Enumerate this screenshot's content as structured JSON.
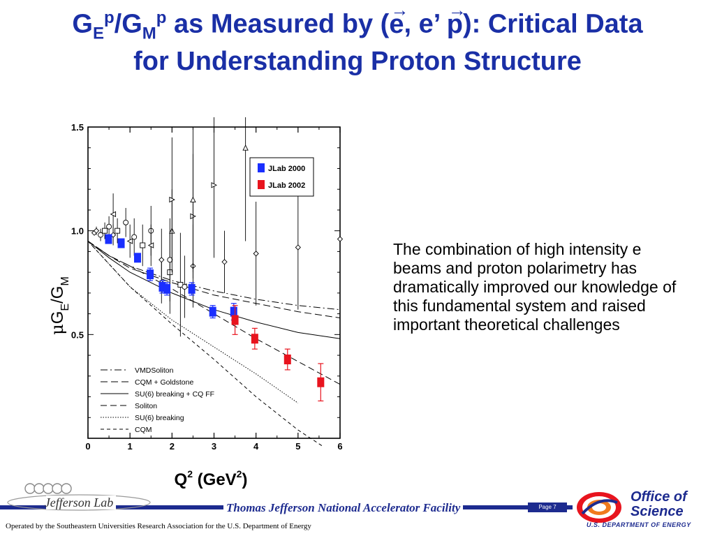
{
  "title": {
    "g1": "G",
    "sub_e": "E",
    "sup_p1": "p",
    "slash_g": "/G",
    "sub_m": "M",
    "sup_p2": "p",
    "pre": " as Measured by (",
    "e_arrow": "e",
    "mid": ", e’ ",
    "p_arrow": "p",
    "post": "): Critical Data",
    "line2": "for Understanding Proton Structure"
  },
  "description": "The combination of high intensity e beams and proton polarimetry has dramatically improved our knowledge of this fundamental system and raised important theoretical challenges",
  "footer": {
    "logo_text": "Jefferson Lab",
    "facility": "Thomas Jefferson National Accelerator Facility",
    "page": "Page 7",
    "operated_by": "Operated by the Southeastern Universities Research Association for the U.S. Department of  Energy",
    "office_line1": "Office of",
    "office_line2": "Science",
    "office_line3": "U.S. DEPARTMENT OF ENERGY"
  },
  "colors": {
    "title": "#1a2fa6",
    "jlab2000": "#1a2fff",
    "jlab2002": "#e8141e",
    "footer_bar": "#1d2b8f"
  },
  "chart_data": {
    "type": "scatter",
    "xlabel_main": "Q",
    "xlabel_sup1": "2",
    "xlabel_mid": " (GeV",
    "xlabel_sup2": "2",
    "xlabel_end": ")",
    "ylabel_mu": "μ",
    "ylabel_G1": "G",
    "ylabel_sub1": "E",
    "ylabel_slash": "/G",
    "ylabel_sub2": "M",
    "xlim": [
      0,
      6
    ],
    "ylim": [
      0,
      1.5
    ],
    "x_ticks": [
      "0",
      "1",
      "2",
      "3",
      "4",
      "5",
      "6"
    ],
    "y_ticks": [
      "0.5",
      "1.0",
      "1.5"
    ],
    "legend_placement": "top-right",
    "series": [
      {
        "name": "JLab 2000",
        "color": "#1a2fff",
        "points": [
          {
            "x": 0.49,
            "y": 0.96,
            "err": 0.02
          },
          {
            "x": 0.79,
            "y": 0.94,
            "err": 0.02
          },
          {
            "x": 1.18,
            "y": 0.87,
            "err": 0.02
          },
          {
            "x": 1.48,
            "y": 0.79,
            "err": 0.03
          },
          {
            "x": 1.77,
            "y": 0.73,
            "err": 0.03
          },
          {
            "x": 1.88,
            "y": 0.72,
            "err": 0.03
          },
          {
            "x": 2.47,
            "y": 0.72,
            "err": 0.03
          },
          {
            "x": 2.97,
            "y": 0.61,
            "err": 0.03
          },
          {
            "x": 3.47,
            "y": 0.61,
            "err": 0.04
          }
        ]
      },
      {
        "name": "JLab 2002",
        "color": "#e8141e",
        "points": [
          {
            "x": 3.5,
            "y": 0.57,
            "err": 0.07
          },
          {
            "x": 3.97,
            "y": 0.48,
            "err": 0.05
          },
          {
            "x": 4.75,
            "y": 0.38,
            "err": 0.05
          },
          {
            "x": 5.54,
            "y": 0.27,
            "err": 0.09
          }
        ]
      }
    ],
    "older_data": [
      {
        "x": 0.15,
        "y": 0.99,
        "err": 0.01,
        "m": "diamond"
      },
      {
        "x": 0.2,
        "y": 1.0,
        "err": 0.02,
        "m": "diamond"
      },
      {
        "x": 0.3,
        "y": 0.98,
        "err": 0.03,
        "m": "circle"
      },
      {
        "x": 0.4,
        "y": 1.0,
        "err": 0.04,
        "m": "square"
      },
      {
        "x": 0.5,
        "y": 1.02,
        "err": 0.05,
        "m": "circle"
      },
      {
        "x": 0.6,
        "y": 1.08,
        "err": 0.1,
        "m": "tri-left"
      },
      {
        "x": 0.6,
        "y": 0.98,
        "err": 0.05,
        "m": "diamond"
      },
      {
        "x": 0.7,
        "y": 1.0,
        "err": 0.06,
        "m": "square"
      },
      {
        "x": 0.9,
        "y": 1.04,
        "err": 0.07,
        "m": "circle"
      },
      {
        "x": 1.0,
        "y": 0.95,
        "err": 0.08,
        "m": "tri-left"
      },
      {
        "x": 1.1,
        "y": 0.97,
        "err": 0.09,
        "m": "circle"
      },
      {
        "x": 1.3,
        "y": 0.93,
        "err": 0.1,
        "m": "square"
      },
      {
        "x": 1.5,
        "y": 1.0,
        "err": 0.12,
        "m": "circle"
      },
      {
        "x": 1.5,
        "y": 0.93,
        "err": 0.1,
        "m": "tri-left"
      },
      {
        "x": 1.75,
        "y": 0.86,
        "err": 0.15,
        "m": "diamond"
      },
      {
        "x": 1.75,
        "y": 0.75,
        "err": 0.1,
        "m": "diamond"
      },
      {
        "x": 1.95,
        "y": 0.8,
        "err": 0.2,
        "m": "square"
      },
      {
        "x": 1.95,
        "y": 0.86,
        "err": 0.2,
        "m": "circle"
      },
      {
        "x": 2.0,
        "y": 1.0,
        "err": 0.2,
        "m": "triangle"
      },
      {
        "x": 2.0,
        "y": 1.15,
        "err": 0.3,
        "m": "tri-right"
      },
      {
        "x": 2.2,
        "y": 0.74,
        "err": 0.25,
        "m": "square"
      },
      {
        "x": 2.3,
        "y": 0.73,
        "err": 0.15,
        "m": "circle"
      },
      {
        "x": 2.5,
        "y": 0.83,
        "err": 0.2,
        "m": "diamond"
      },
      {
        "x": 2.5,
        "y": 1.07,
        "err": 0.3,
        "m": "tri-right"
      },
      {
        "x": 2.5,
        "y": 1.15,
        "err": 0.35,
        "m": "triangle"
      },
      {
        "x": 3.0,
        "y": 1.22,
        "err": 0.35,
        "m": "tri-right"
      },
      {
        "x": 3.25,
        "y": 0.85,
        "err": 0.15,
        "m": "diamond"
      },
      {
        "x": 3.75,
        "y": 1.4,
        "err": 0.45,
        "m": "triangle"
      },
      {
        "x": 4.0,
        "y": 0.89,
        "err": 0.25,
        "m": "diamond"
      },
      {
        "x": 5.0,
        "y": 0.92,
        "err": 0.3,
        "m": "diamond"
      },
      {
        "x": 6.0,
        "y": 0.96,
        "err": 0.4,
        "m": "diamond"
      }
    ],
    "curves": [
      {
        "name": "VMDSoliton",
        "dash": "10,4,2,4",
        "points": [
          [
            0,
            0.95
          ],
          [
            0.5,
            0.88
          ],
          [
            1,
            0.83
          ],
          [
            2,
            0.76
          ],
          [
            3,
            0.71
          ],
          [
            4,
            0.67
          ],
          [
            5,
            0.64
          ],
          [
            6,
            0.62
          ]
        ]
      },
      {
        "name": "CQM + Goldstone",
        "dash": "10,5",
        "points": [
          [
            0,
            0.95
          ],
          [
            0.5,
            0.88
          ],
          [
            1,
            0.82
          ],
          [
            2,
            0.75
          ],
          [
            3,
            0.69
          ],
          [
            4,
            0.65
          ],
          [
            5,
            0.61
          ],
          [
            6,
            0.58
          ]
        ]
      },
      {
        "name": "SU(6) breaking + CQ FF",
        "dash": "",
        "points": [
          [
            0,
            0.95
          ],
          [
            0.5,
            0.87
          ],
          [
            1,
            0.8
          ],
          [
            2,
            0.7
          ],
          [
            3,
            0.62
          ],
          [
            4,
            0.56
          ],
          [
            5,
            0.51
          ],
          [
            6,
            0.48
          ]
        ]
      },
      {
        "name": "Soliton",
        "dash": "9,5",
        "points": [
          [
            0,
            0.95
          ],
          [
            0.5,
            0.88
          ],
          [
            1,
            0.83
          ],
          [
            2,
            0.72
          ],
          [
            3,
            0.6
          ],
          [
            4,
            0.48
          ],
          [
            5,
            0.37
          ],
          [
            6,
            0.26
          ]
        ]
      },
      {
        "name": "SU(6) breaking",
        "dash": "1.5,2",
        "points": [
          [
            0,
            0.95
          ],
          [
            1,
            0.73
          ],
          [
            2,
            0.57
          ],
          [
            3,
            0.44
          ],
          [
            4,
            0.31
          ],
          [
            5,
            0.17
          ]
        ]
      },
      {
        "name": "CQM",
        "dash": "5,4",
        "points": [
          [
            0,
            0.95
          ],
          [
            1,
            0.73
          ],
          [
            2,
            0.55
          ],
          [
            3,
            0.38
          ],
          [
            4,
            0.2
          ],
          [
            5,
            0.04
          ],
          [
            5.6,
            -0.04
          ]
        ]
      }
    ]
  }
}
